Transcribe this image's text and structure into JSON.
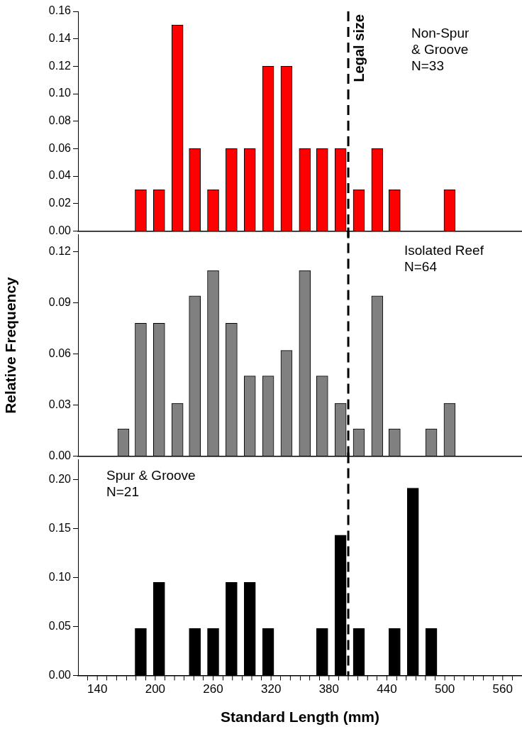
{
  "chart_data": [
    {
      "type": "bar",
      "x": [
        185,
        204,
        223,
        241,
        260,
        279,
        298,
        317,
        336,
        355,
        373,
        392,
        411,
        430,
        448,
        505
      ],
      "values": [
        0.03,
        0.03,
        0.15,
        0.06,
        0.03,
        0.06,
        0.06,
        0.12,
        0.12,
        0.06,
        0.06,
        0.06,
        0.03,
        0.06,
        0.03,
        0.03
      ],
      "color": "#ff0000",
      "xlim": [
        120,
        580
      ],
      "ylim": [
        0,
        0.16
      ],
      "yticks": [
        {
          "value": 0,
          "label": "0.00"
        },
        0.02,
        0.04,
        0.06,
        0.08,
        {
          "value": 0.1,
          "label": "0.10"
        },
        0.12,
        0.14,
        0.16
      ],
      "tick_labels": "y",
      "ref_lines": [
        {
          "axis": "x",
          "value": 400,
          "label": "Legal size",
          "line_style": "dashed",
          "color": "#000000"
        }
      ],
      "annotations": [
        "Non-Spur\n& Groove\nN=33"
      ]
    },
    {
      "type": "bar",
      "x": [
        167,
        185,
        204,
        223,
        241,
        260,
        279,
        298,
        317,
        336,
        355,
        373,
        392,
        411,
        430,
        448,
        486,
        505
      ],
      "values": [
        0.016,
        0.078,
        0.078,
        0.031,
        0.094,
        0.109,
        0.078,
        0.047,
        0.047,
        0.062,
        0.109,
        0.047,
        0.031,
        0.016,
        0.094,
        0.016,
        0.016,
        0.031
      ],
      "color": "#808080",
      "xlim": [
        120,
        580
      ],
      "ylim": [
        0,
        0.13
      ],
      "yticks": [
        {
          "value": 0,
          "label": "0.00"
        },
        0.03,
        0.06,
        0.09,
        0.12
      ],
      "tick_labels": "y",
      "ylabel": "Relative Frequency",
      "ref_lines": [
        {
          "axis": "x",
          "value": 400,
          "line_style": "dashed",
          "color": "#000000"
        }
      ],
      "annotations": [
        "Isolated Reef\nN=64"
      ]
    },
    {
      "type": "bar",
      "x": [
        185,
        204,
        241,
        260,
        279,
        298,
        317,
        373,
        392,
        411,
        448,
        467,
        486
      ],
      "values": [
        0.048,
        0.095,
        0.048,
        0.048,
        0.095,
        0.095,
        0.048,
        0.048,
        0.143,
        0.048,
        0.048,
        0.191,
        0.048
      ],
      "color": "#000000",
      "xlim": [
        120,
        580
      ],
      "xticks": [
        140,
        {
          "value": 160,
          "label": null
        },
        {
          "value": 180,
          "label": null
        },
        200,
        {
          "value": 220,
          "label": null
        },
        {
          "value": 240,
          "label": null
        },
        260,
        {
          "value": 280,
          "label": null
        },
        {
          "value": 300,
          "label": null
        },
        320,
        {
          "value": 340,
          "label": null
        },
        {
          "value": 360,
          "label": null
        },
        380,
        {
          "value": 400,
          "label": null
        },
        {
          "value": 420,
          "label": null
        },
        440,
        {
          "value": 460,
          "label": null
        },
        {
          "value": 480,
          "label": null
        },
        500,
        {
          "value": 520,
          "label": null
        },
        {
          "value": 540,
          "label": null
        },
        560
      ],
      "ylim": [
        0,
        0.22
      ],
      "yticks": [
        {
          "value": 0,
          "label": "0.00"
        },
        0.05,
        {
          "value": 0.1,
          "label": "0.10"
        },
        0.15,
        {
          "value": 0.2,
          "label": "0.20"
        }
      ],
      "xlabel": "Standard Length (mm)",
      "ref_lines": [
        {
          "axis": "x",
          "value": 400,
          "line_style": "dashed",
          "color": "#000000"
        }
      ],
      "annotations": [
        "Spur & Groove\nN=21"
      ]
    }
  ]
}
